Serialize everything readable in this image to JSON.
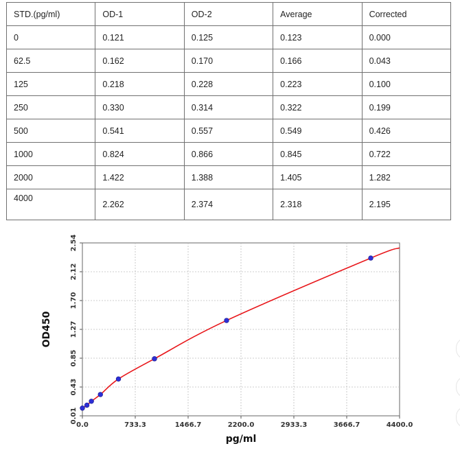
{
  "table": {
    "headers": [
      "STD.(pg/ml)",
      "OD-1",
      "OD-2",
      "Average",
      "Corrected"
    ],
    "rows": [
      [
        "0",
        "0.121",
        "0.125",
        "0.123",
        "0.000"
      ],
      [
        "62.5",
        "0.162",
        "0.170",
        "0.166",
        "0.043"
      ],
      [
        "125",
        "0.218",
        "0.228",
        "0.223",
        "0.100"
      ],
      [
        "250",
        "0.330",
        "0.314",
        "0.322",
        "0.199"
      ],
      [
        "500",
        "0.541",
        "0.557",
        "0.549",
        "0.426"
      ],
      [
        "1000",
        "0.824",
        "0.866",
        "0.845",
        "0.722"
      ],
      [
        "2000",
        "1.422",
        "1.388",
        "1.405",
        "1.282"
      ],
      [
        "4000",
        "2.262",
        "2.374",
        "2.318",
        "2.195"
      ]
    ]
  },
  "chart_data": {
    "type": "scatter",
    "xlabel": "pg/ml",
    "ylabel": "OD450",
    "xlim": [
      0.0,
      4400.0
    ],
    "ylim": [
      0.01,
      2.54
    ],
    "x_tick_labels": [
      "0.0",
      "733.3",
      "1466.7",
      "2200.0",
      "2933.3",
      "3666.7",
      "4400.0"
    ],
    "y_tick_labels": [
      "0.01",
      "0.43",
      "0.85",
      "1.27",
      "1.70",
      "2.12",
      "2.54"
    ],
    "grid": true,
    "points": [
      {
        "x": 0,
        "y": 0.123
      },
      {
        "x": 62.5,
        "y": 0.166
      },
      {
        "x": 125,
        "y": 0.223
      },
      {
        "x": 250,
        "y": 0.322
      },
      {
        "x": 500,
        "y": 0.549
      },
      {
        "x": 1000,
        "y": 0.845
      },
      {
        "x": 2000,
        "y": 1.405
      },
      {
        "x": 4000,
        "y": 2.318
      }
    ],
    "fit_curve_color": "#e8161a",
    "point_color": "#2d2fd6"
  }
}
